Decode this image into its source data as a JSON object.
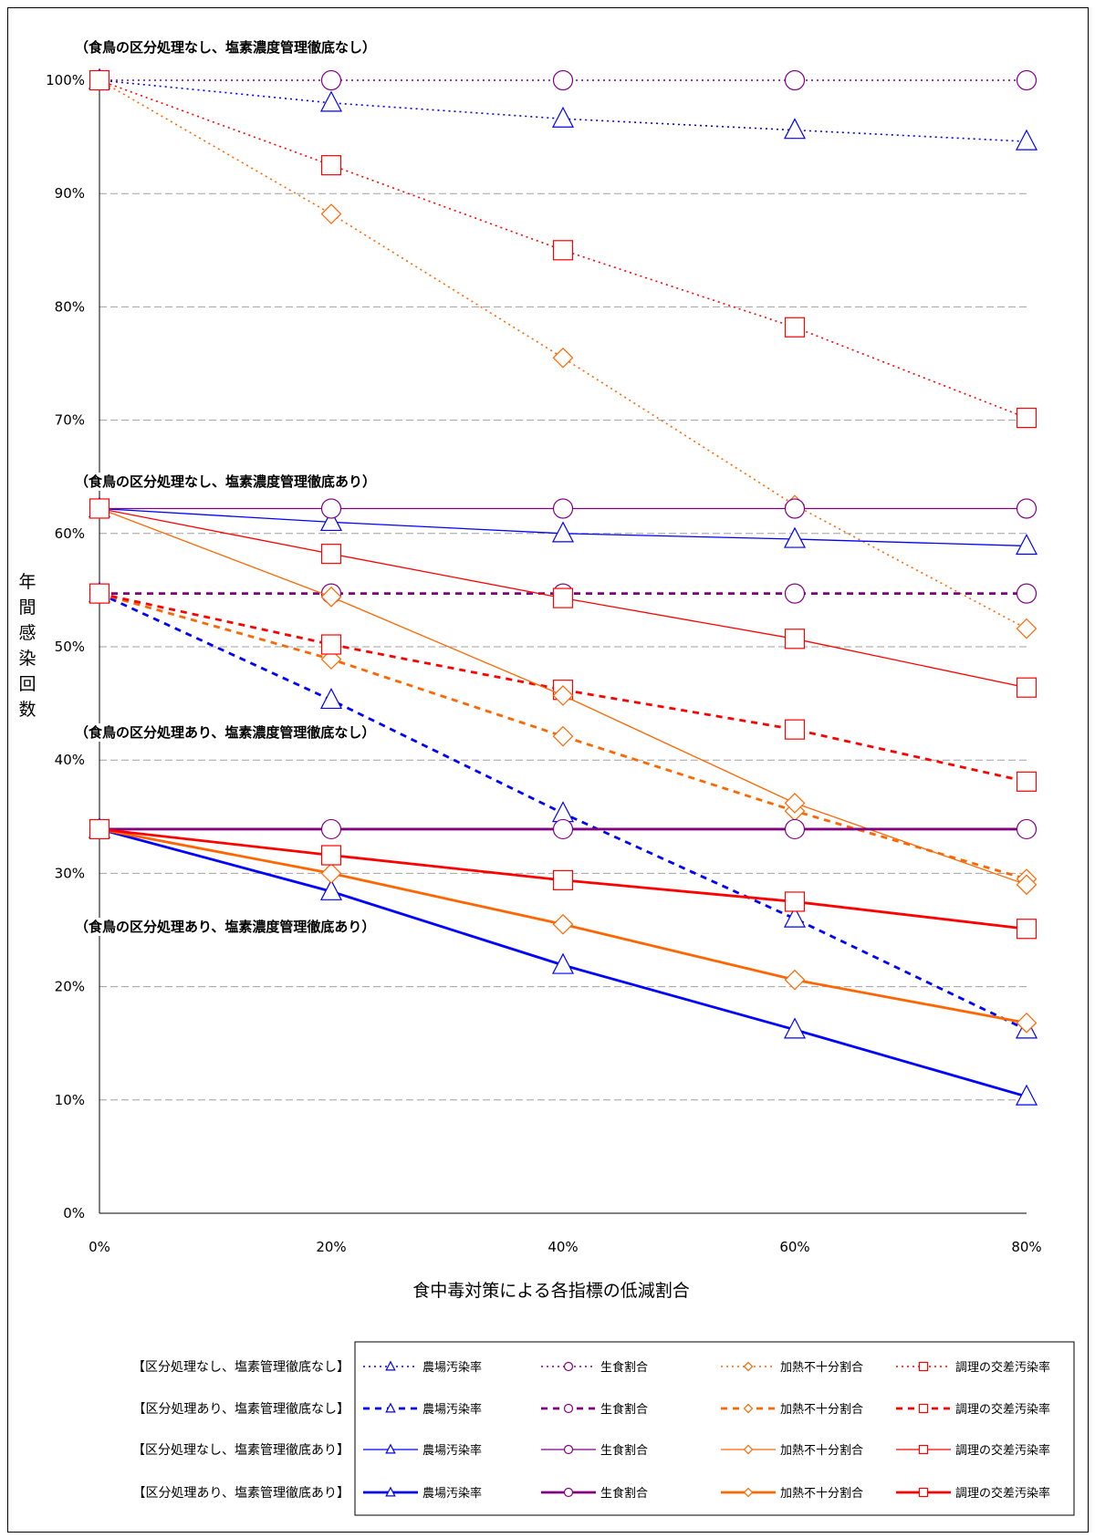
{
  "chart_data": {
    "type": "line",
    "title": "",
    "xlabel": "食中毒対策による各指標の低減割合",
    "ylabel": "年間感染回数",
    "x": [
      "0%",
      "20%",
      "40%",
      "60%",
      "80%"
    ],
    "x_values": [
      0,
      20,
      40,
      60,
      80
    ],
    "yticks": [
      "0%",
      "10%",
      "20%",
      "30%",
      "40%",
      "50%",
      "60%",
      "70%",
      "80%",
      "90%",
      "100%"
    ],
    "ylim": [
      0,
      100
    ],
    "grid": "horizontal dashed",
    "annotations": [
      {
        "text": "（食鳥の区分処理なし、塩素濃度管理徹底なし）",
        "scenario": 0
      },
      {
        "text": "（食鳥の区分処理なし、塩素濃度管理徹底あり）",
        "scenario": 2
      },
      {
        "text": "（食鳥の区分処理あり、塩素濃度管理徹底なし）",
        "scenario": 1
      },
      {
        "text": "（食鳥の区分処理あり、塩素濃度管理徹底あり）",
        "scenario": 3
      }
    ],
    "scenarios": [
      {
        "name": "【区分処理なし、塩素管理徹底なし】",
        "line": "dotted"
      },
      {
        "name": "【区分処理あり、塩素管理徹底なし】",
        "line": "dashed"
      },
      {
        "name": "【区分処理なし、塩素管理徹底あり】",
        "line": "thin"
      },
      {
        "name": "【区分処理あり、塩素管理徹底あり】",
        "line": "thick"
      }
    ],
    "indicators": [
      {
        "name": "農場汚染率",
        "color": "#0000ff",
        "marker": "triangle"
      },
      {
        "name": "生食割合",
        "color": "#800080",
        "marker": "circle"
      },
      {
        "name": "加熱不十分割合",
        "color": "#ff6600",
        "marker": "diamond"
      },
      {
        "name": "調理の交差汚染率",
        "color": "#ff0000",
        "marker": "square"
      }
    ],
    "series": [
      {
        "scenario": 0,
        "indicator": 0,
        "values": [
          100,
          98.0,
          96.6,
          95.6,
          94.6
        ]
      },
      {
        "scenario": 0,
        "indicator": 1,
        "values": [
          100,
          100,
          100,
          100,
          100
        ]
      },
      {
        "scenario": 0,
        "indicator": 2,
        "values": [
          100,
          88.2,
          75.5,
          62.5,
          51.6
        ]
      },
      {
        "scenario": 0,
        "indicator": 3,
        "values": [
          100,
          92.5,
          85.0,
          78.2,
          70.2
        ]
      },
      {
        "scenario": 1,
        "indicator": 0,
        "values": [
          54.7,
          45.3,
          35.3,
          26.0,
          16.2
        ]
      },
      {
        "scenario": 1,
        "indicator": 1,
        "values": [
          54.7,
          54.7,
          54.7,
          54.7,
          54.7
        ]
      },
      {
        "scenario": 1,
        "indicator": 2,
        "values": [
          54.7,
          48.9,
          42.1,
          35.5,
          29.5
        ]
      },
      {
        "scenario": 1,
        "indicator": 3,
        "values": [
          54.7,
          50.2,
          46.2,
          42.7,
          38.1
        ]
      },
      {
        "scenario": 2,
        "indicator": 0,
        "values": [
          62.2,
          61.0,
          60.0,
          59.5,
          58.9
        ]
      },
      {
        "scenario": 2,
        "indicator": 1,
        "values": [
          62.2,
          62.2,
          62.2,
          62.2,
          62.2
        ]
      },
      {
        "scenario": 2,
        "indicator": 2,
        "values": [
          62.2,
          54.4,
          45.7,
          36.2,
          29.0
        ]
      },
      {
        "scenario": 2,
        "indicator": 3,
        "values": [
          62.2,
          58.2,
          54.3,
          50.7,
          46.4
        ]
      },
      {
        "scenario": 3,
        "indicator": 0,
        "values": [
          33.9,
          28.4,
          21.9,
          16.2,
          10.3
        ]
      },
      {
        "scenario": 3,
        "indicator": 1,
        "values": [
          33.9,
          33.9,
          33.9,
          33.9,
          33.9
        ]
      },
      {
        "scenario": 3,
        "indicator": 2,
        "values": [
          33.9,
          30.0,
          25.5,
          20.6,
          16.8
        ]
      },
      {
        "scenario": 3,
        "indicator": 3,
        "values": [
          33.9,
          31.6,
          29.4,
          27.5,
          25.1
        ]
      }
    ]
  }
}
